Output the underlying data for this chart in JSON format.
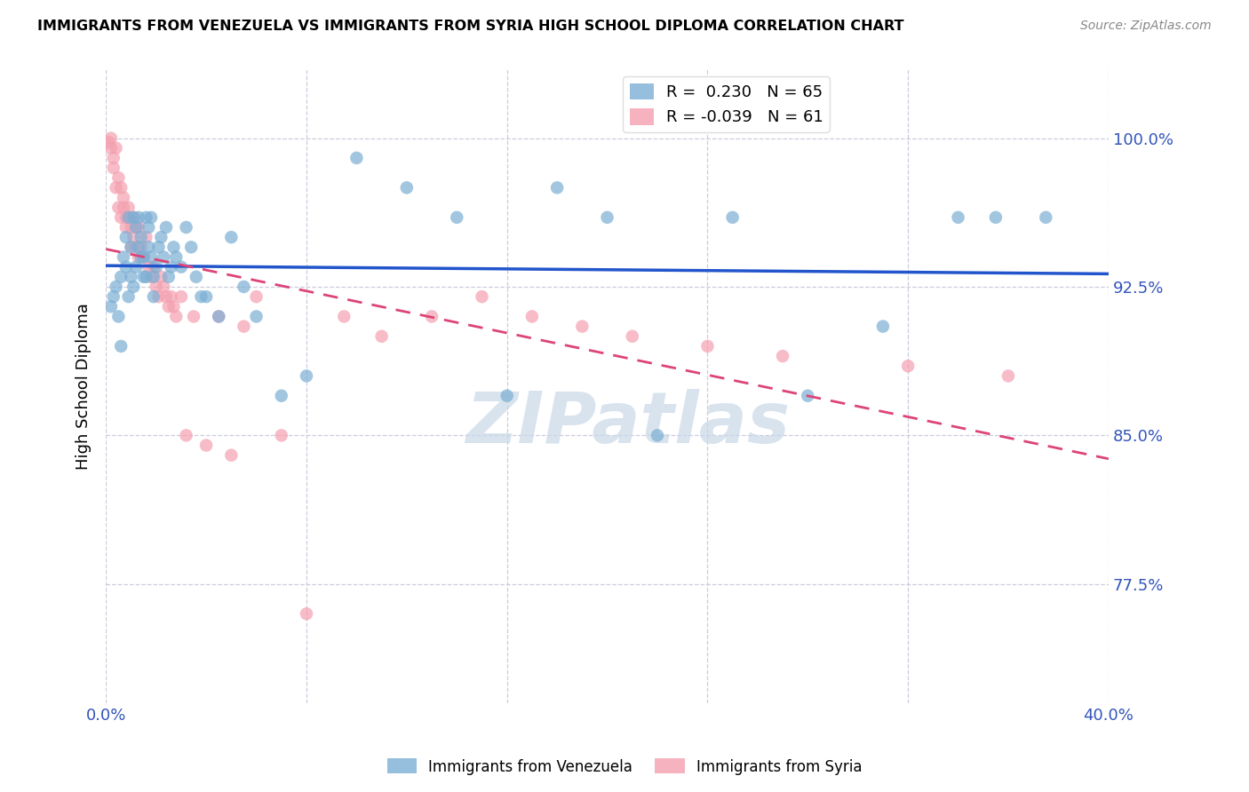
{
  "title": "IMMIGRANTS FROM VENEZUELA VS IMMIGRANTS FROM SYRIA HIGH SCHOOL DIPLOMA CORRELATION CHART",
  "source": "Source: ZipAtlas.com",
  "ylabel": "High School Diploma",
  "yticks": [
    0.775,
    0.85,
    0.925,
    1.0
  ],
  "ytick_labels": [
    "77.5%",
    "85.0%",
    "92.5%",
    "100.0%"
  ],
  "xlim": [
    0.0,
    0.4
  ],
  "ylim": [
    0.715,
    1.035
  ],
  "legend_blue_r": "0.230",
  "legend_blue_n": "65",
  "legend_pink_r": "-0.039",
  "legend_pink_n": "61",
  "blue_color": "#7BAFD4",
  "pink_color": "#F4A0B0",
  "line_blue_color": "#2255CC",
  "line_pink_color": "#DD4477",
  "watermark": "ZIPatlas",
  "watermark_color": "#C8D8E8",
  "blue_label": "Immigrants from Venezuela",
  "pink_label": "Immigrants from Syria",
  "venezuela_x": [
    0.002,
    0.003,
    0.004,
    0.005,
    0.006,
    0.006,
    0.007,
    0.008,
    0.008,
    0.009,
    0.009,
    0.01,
    0.01,
    0.011,
    0.011,
    0.012,
    0.012,
    0.013,
    0.013,
    0.014,
    0.014,
    0.015,
    0.015,
    0.016,
    0.016,
    0.017,
    0.017,
    0.018,
    0.018,
    0.019,
    0.019,
    0.02,
    0.021,
    0.022,
    0.023,
    0.024,
    0.025,
    0.026,
    0.027,
    0.028,
    0.03,
    0.032,
    0.034,
    0.036,
    0.038,
    0.04,
    0.045,
    0.05,
    0.055,
    0.06,
    0.07,
    0.08,
    0.1,
    0.12,
    0.14,
    0.16,
    0.18,
    0.2,
    0.22,
    0.25,
    0.28,
    0.31,
    0.34,
    0.355,
    0.375
  ],
  "venezuela_y": [
    0.915,
    0.92,
    0.925,
    0.91,
    0.895,
    0.93,
    0.94,
    0.935,
    0.95,
    0.92,
    0.96,
    0.945,
    0.93,
    0.96,
    0.925,
    0.955,
    0.935,
    0.945,
    0.96,
    0.94,
    0.95,
    0.93,
    0.94,
    0.96,
    0.93,
    0.945,
    0.955,
    0.94,
    0.96,
    0.93,
    0.92,
    0.935,
    0.945,
    0.95,
    0.94,
    0.955,
    0.93,
    0.935,
    0.945,
    0.94,
    0.935,
    0.955,
    0.945,
    0.93,
    0.92,
    0.92,
    0.91,
    0.95,
    0.925,
    0.91,
    0.87,
    0.88,
    0.99,
    0.975,
    0.96,
    0.87,
    0.975,
    0.96,
    0.85,
    0.96,
    0.87,
    0.905,
    0.96,
    0.96,
    0.96
  ],
  "syria_x": [
    0.001,
    0.002,
    0.002,
    0.003,
    0.003,
    0.004,
    0.004,
    0.005,
    0.005,
    0.006,
    0.006,
    0.007,
    0.007,
    0.008,
    0.008,
    0.009,
    0.009,
    0.01,
    0.01,
    0.011,
    0.011,
    0.012,
    0.012,
    0.013,
    0.013,
    0.014,
    0.015,
    0.016,
    0.017,
    0.018,
    0.019,
    0.02,
    0.021,
    0.022,
    0.023,
    0.024,
    0.025,
    0.026,
    0.027,
    0.028,
    0.03,
    0.032,
    0.035,
    0.04,
    0.045,
    0.05,
    0.055,
    0.06,
    0.07,
    0.08,
    0.095,
    0.11,
    0.13,
    0.15,
    0.17,
    0.19,
    0.21,
    0.24,
    0.27,
    0.32,
    0.36
  ],
  "syria_y": [
    0.998,
    1.0,
    0.995,
    0.99,
    0.985,
    0.995,
    0.975,
    0.98,
    0.965,
    0.975,
    0.96,
    0.965,
    0.97,
    0.96,
    0.955,
    0.96,
    0.965,
    0.955,
    0.945,
    0.96,
    0.95,
    0.955,
    0.945,
    0.94,
    0.955,
    0.945,
    0.94,
    0.95,
    0.935,
    0.93,
    0.935,
    0.925,
    0.92,
    0.93,
    0.925,
    0.92,
    0.915,
    0.92,
    0.915,
    0.91,
    0.92,
    0.85,
    0.91,
    0.845,
    0.91,
    0.84,
    0.905,
    0.92,
    0.85,
    0.76,
    0.91,
    0.9,
    0.91,
    0.92,
    0.91,
    0.905,
    0.9,
    0.895,
    0.89,
    0.885,
    0.88
  ]
}
